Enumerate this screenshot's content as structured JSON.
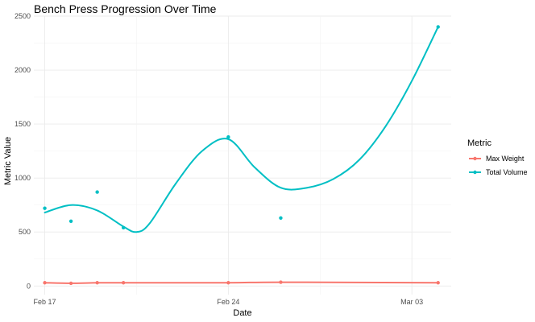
{
  "chart_data": {
    "type": "scatter",
    "title": "Bench Press Progression Over Time",
    "xlabel": "Date",
    "ylabel": "Metric Value",
    "x_ticks": [
      {
        "date": "2025-02-17",
        "label": "Feb 17"
      },
      {
        "date": "2025-02-24",
        "label": "Feb 24"
      },
      {
        "date": "2025-03-03",
        "label": "Mar 03"
      }
    ],
    "xlim": [
      "2025-02-16T14:00",
      "2025-03-04T12:00"
    ],
    "ylim": [
      -80,
      2500
    ],
    "y_ticks": [
      0,
      500,
      1000,
      1500,
      2000,
      2500
    ],
    "grid": true,
    "legend": {
      "title": "Metric",
      "placement": "right"
    },
    "smoothed": true,
    "series": [
      {
        "name": "Max Weight",
        "color": "#F8766D",
        "points": [
          {
            "date": "2025-02-17",
            "value": 30
          },
          {
            "date": "2025-02-18",
            "value": 25
          },
          {
            "date": "2025-02-19",
            "value": 30
          },
          {
            "date": "2025-02-20",
            "value": 30
          },
          {
            "date": "2025-02-24",
            "value": 30
          },
          {
            "date": "2025-02-26",
            "value": 35
          },
          {
            "date": "2025-03-04",
            "value": 30
          }
        ]
      },
      {
        "name": "Total Volume",
        "color": "#00BFC4",
        "points": [
          {
            "date": "2025-02-17",
            "value": 720
          },
          {
            "date": "2025-02-18",
            "value": 600
          },
          {
            "date": "2025-02-19",
            "value": 870
          },
          {
            "date": "2025-02-20",
            "value": 540
          },
          {
            "date": "2025-02-24",
            "value": 1380
          },
          {
            "date": "2025-02-26",
            "value": 630
          },
          {
            "date": "2025-03-04",
            "value": 2400
          }
        ],
        "trend": [
          {
            "date": "2025-02-17",
            "value": 680
          },
          {
            "date": "2025-02-18",
            "value": 750
          },
          {
            "date": "2025-02-19",
            "value": 700
          },
          {
            "date": "2025-02-20",
            "value": 550
          },
          {
            "date": "2025-02-20T12:00",
            "value": 500
          },
          {
            "date": "2025-02-21",
            "value": 580
          },
          {
            "date": "2025-02-22",
            "value": 950
          },
          {
            "date": "2025-02-23",
            "value": 1250
          },
          {
            "date": "2025-02-24",
            "value": 1360
          },
          {
            "date": "2025-02-25",
            "value": 1100
          },
          {
            "date": "2025-02-26",
            "value": 910
          },
          {
            "date": "2025-02-27",
            "value": 910
          },
          {
            "date": "2025-02-28",
            "value": 990
          },
          {
            "date": "2025-03-01",
            "value": 1170
          },
          {
            "date": "2025-03-02",
            "value": 1480
          },
          {
            "date": "2025-03-03",
            "value": 1900
          },
          {
            "date": "2025-03-04",
            "value": 2400
          }
        ]
      }
    ]
  }
}
